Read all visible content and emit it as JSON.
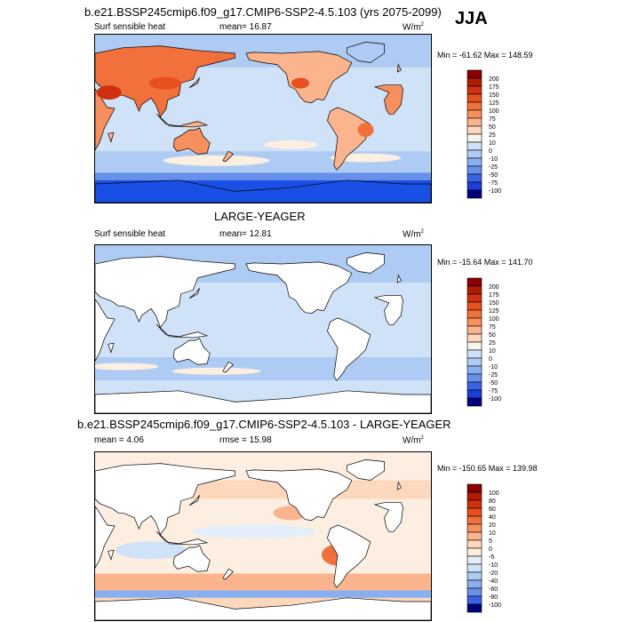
{
  "top_title": "b.e21.BSSP245cmip6.f09_g17.CMIP6-SSP2-4.5.103 (yrs 2075-2099)",
  "season": "JJA",
  "panels": [
    {
      "id": "case",
      "heading": "",
      "variable": "Surf sensible heat",
      "mean_text": "mean=  16.87",
      "rmse_text": "",
      "units": "W/m",
      "units_exp": "2",
      "minmax": "Min = -61.62 Max = 148.59",
      "style": "full"
    },
    {
      "id": "obs",
      "heading": "LARGE-YEAGER",
      "variable": "Surf sensible heat",
      "mean_text": "mean=  12.81",
      "rmse_text": "",
      "units": "W/m",
      "units_exp": "2",
      "minmax": "Min = -15.64 Max = 141.70",
      "style": "ocean"
    },
    {
      "id": "diff",
      "heading": "b.e21.BSSP245cmip6.f09_g17.CMIP6-SSP2-4.5.103 - LARGE-YEAGER",
      "variable": "",
      "mean_text": "mean =   4.06",
      "rmse_text": "rmse =  15.98",
      "units": "W/m",
      "units_exp": "2",
      "minmax": "Min = -150.65 Max = 139.98",
      "style": "diff"
    }
  ],
  "chart_data": [
    {
      "type": "heatmap",
      "title": "Surf sensible heat",
      "units": "W/m2",
      "colorbar_levels": [
        "200",
        "175",
        "150",
        "125",
        "100",
        "75",
        "50",
        "25",
        "10",
        "0",
        "-10",
        "-25",
        "-50",
        "-75",
        "-100"
      ],
      "colors": [
        "#8b0000",
        "#b31b00",
        "#d03010",
        "#e8501e",
        "#f2703c",
        "#f7905e",
        "#fbb48c",
        "#fdd8bc",
        "#f6f6ef",
        "#cfe2f8",
        "#aecbf4",
        "#8aaff0",
        "#6690ea",
        "#3b62e6",
        "#1a3ed6",
        "#00007a"
      ],
      "mean": 16.87,
      "min": -61.62,
      "max": 148.59
    },
    {
      "type": "heatmap",
      "title": "Surf sensible heat",
      "units": "W/m2",
      "colorbar_levels": [
        "200",
        "175",
        "150",
        "125",
        "100",
        "75",
        "50",
        "25",
        "10",
        "0",
        "-10",
        "-25",
        "-50",
        "-75",
        "-100"
      ],
      "colors": [
        "#8b0000",
        "#b31b00",
        "#d03010",
        "#e8501e",
        "#f2703c",
        "#f7905e",
        "#fbb48c",
        "#fdd8bc",
        "#f6f6ef",
        "#cfe2f8",
        "#aecbf4",
        "#8aaff0",
        "#6690ea",
        "#3b62e6",
        "#1a3ed6",
        "#00007a"
      ],
      "mean": 12.81,
      "min": -15.64,
      "max": 141.7
    },
    {
      "type": "heatmap",
      "title": "b.e21.BSSP245cmip6.f09_g17.CMIP6-SSP2-4.5.103 - LARGE-YEAGER",
      "units": "W/m2",
      "colorbar_levels": [
        "100",
        "80",
        "60",
        "40",
        "20",
        "10",
        "5",
        "0",
        "-5",
        "-10",
        "-20",
        "-40",
        "-60",
        "-80",
        "-100"
      ],
      "colors": [
        "#8b0000",
        "#b31b00",
        "#d03010",
        "#e8501e",
        "#f2703c",
        "#f7905e",
        "#fbb48c",
        "#fdd8bc",
        "#fdeee2",
        "#e4eefa",
        "#cfe2f8",
        "#aecbf4",
        "#8aaff0",
        "#6690ea",
        "#3b62e6",
        "#00007a"
      ],
      "mean": 4.06,
      "rmse": 15.98,
      "min": -150.65,
      "max": 139.98
    }
  ]
}
